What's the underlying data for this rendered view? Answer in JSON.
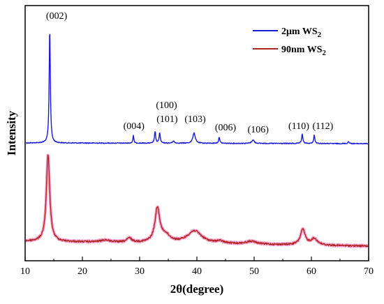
{
  "chart_data": {
    "type": "line",
    "title": "",
    "xlabel": "2θ(degree)",
    "ylabel": "Intensity",
    "xlim": [
      10,
      70
    ],
    "xticks": [
      10,
      20,
      30,
      40,
      50,
      60,
      70
    ],
    "grid": false,
    "legend_position": "top-right",
    "series": [
      {
        "name": "2μm WS",
        "name_subscript": "2",
        "color": "#1a1adc",
        "peaks": [
          {
            "x": 14.3,
            "h": 165,
            "w": 0.12
          },
          {
            "x": 28.9,
            "h": 11,
            "w": 0.1
          },
          {
            "x": 32.7,
            "h": 17,
            "w": 0.12
          },
          {
            "x": 33.5,
            "h": 15,
            "w": 0.12
          },
          {
            "x": 35.9,
            "h": 3,
            "w": 0.2
          },
          {
            "x": 39.5,
            "h": 15,
            "w": 0.25
          },
          {
            "x": 43.9,
            "h": 9,
            "w": 0.12
          },
          {
            "x": 49.8,
            "h": 5,
            "w": 0.25
          },
          {
            "x": 58.4,
            "h": 14,
            "w": 0.12
          },
          {
            "x": 60.5,
            "h": 12,
            "w": 0.12
          },
          {
            "x": 66.5,
            "h": 3,
            "w": 0.12
          }
        ]
      },
      {
        "name": "90nm WS",
        "name_subscript": "2",
        "color": "#b22222",
        "halo_color": "#f0a0c8",
        "peaks": [
          {
            "x": 14.0,
            "h": 125,
            "w": 0.35
          },
          {
            "x": 24.0,
            "h": 3,
            "w": 1.0
          },
          {
            "x": 28.2,
            "h": 6,
            "w": 0.5
          },
          {
            "x": 33.1,
            "h": 48,
            "w": 0.5
          },
          {
            "x": 34.5,
            "h": 10,
            "w": 1.0
          },
          {
            "x": 39.6,
            "h": 18,
            "w": 1.5
          },
          {
            "x": 44.0,
            "h": 3,
            "w": 0.8
          },
          {
            "x": 49.5,
            "h": 4,
            "w": 1.2
          },
          {
            "x": 58.5,
            "h": 22,
            "w": 0.5
          },
          {
            "x": 60.5,
            "h": 9,
            "w": 0.7
          }
        ]
      }
    ],
    "annotations": [
      {
        "text": "(002)",
        "x": 15.5
      },
      {
        "text": "(004)",
        "x": 29.0
      },
      {
        "text": "(100)",
        "x": 34.7
      },
      {
        "text": "(101)",
        "x": 34.8
      },
      {
        "text": "(103)",
        "x": 39.7
      },
      {
        "text": "(006)",
        "x": 45.0
      },
      {
        "text": "(106)",
        "x": 50.7
      },
      {
        "text": "(110)",
        "x": 57.8
      },
      {
        "text": "(112)",
        "x": 62.0
      }
    ]
  }
}
